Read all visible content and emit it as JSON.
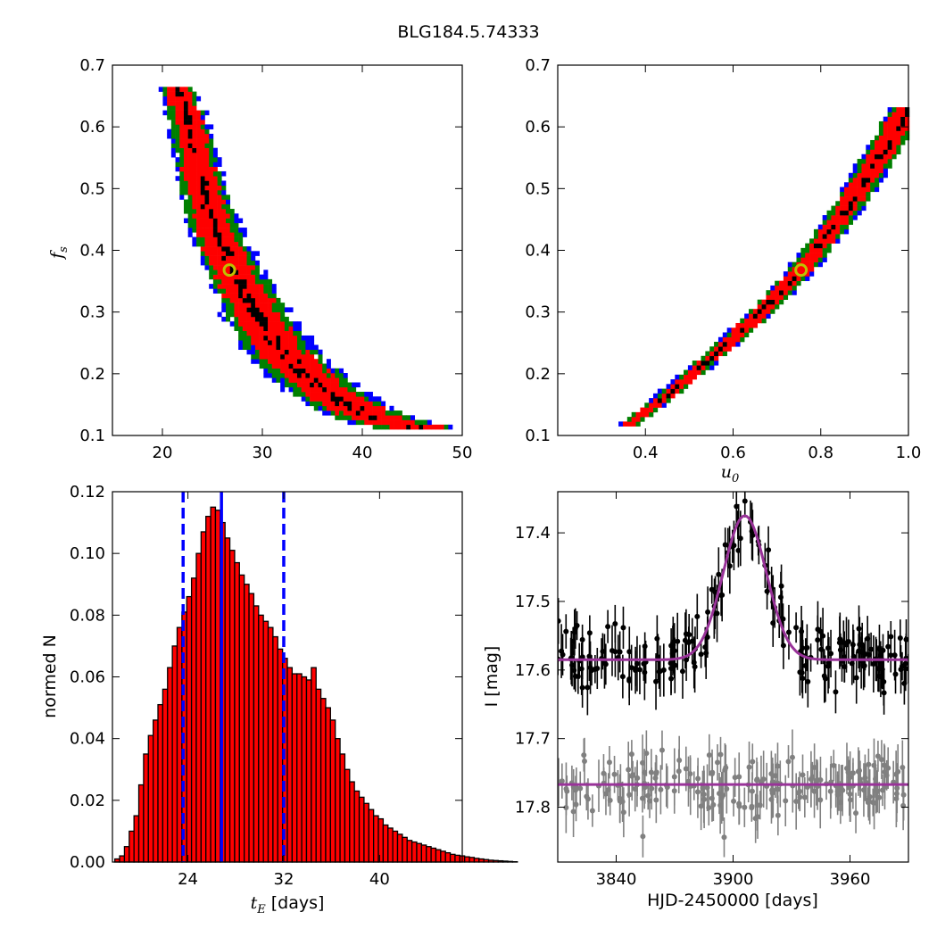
{
  "figure_title": "BLG184.5.74333",
  "colors": {
    "blue_level": "#0000ff",
    "green_level": "#008000",
    "red_level": "#ff0000",
    "black_level": "#000000",
    "best_fit_marker": "#bfbf00",
    "hist_bar": "#ff0000",
    "percentile_line": "#0000ff",
    "model_curve": "#993399",
    "data_points": "#000000",
    "residual_points": "#808080"
  },
  "chart_data": [
    {
      "id": "tE_fs",
      "type": "heatmap",
      "xlabel": "",
      "ylabel": "f_s",
      "ylabel_main": "f",
      "ylabel_sub": "s",
      "xlim": [
        15,
        50
      ],
      "ylim": [
        0.1,
        0.7
      ],
      "xticks": [
        20,
        30,
        40,
        50
      ],
      "yticks": [
        0.1,
        0.2,
        0.3,
        0.4,
        0.5,
        0.6,
        0.7
      ],
      "levels": [
        "blue",
        "green",
        "red",
        "black"
      ],
      "ridge": [
        [
          21.2,
          0.66
        ],
        [
          22.5,
          0.6
        ],
        [
          23.5,
          0.52
        ],
        [
          24.8,
          0.44
        ],
        [
          26.8,
          0.37
        ],
        [
          29,
          0.3
        ],
        [
          31,
          0.25
        ],
        [
          33,
          0.21
        ],
        [
          36,
          0.17
        ],
        [
          39,
          0.14
        ],
        [
          42,
          0.12
        ],
        [
          45,
          0.11
        ]
      ],
      "best_fit": {
        "x": 26.7,
        "y": 0.368
      }
    },
    {
      "id": "u0_fs",
      "type": "heatmap",
      "xlabel": "u_0",
      "xlabel_main": "u",
      "xlabel_sub": "0",
      "ylabel": "",
      "xlim": [
        0.2,
        1.0
      ],
      "ylim": [
        0.1,
        0.7
      ],
      "xticks": [
        0.4,
        0.6,
        0.8,
        1.0
      ],
      "yticks": [
        0.1,
        0.2,
        0.3,
        0.4,
        0.5,
        0.6,
        0.7
      ],
      "levels": [
        "blue",
        "green",
        "red",
        "black"
      ],
      "ridge": [
        [
          0.36,
          0.115
        ],
        [
          0.45,
          0.165
        ],
        [
          0.55,
          0.225
        ],
        [
          0.65,
          0.29
        ],
        [
          0.755,
          0.368
        ],
        [
          0.85,
          0.46
        ],
        [
          0.93,
          0.55
        ],
        [
          1.0,
          0.63
        ]
      ],
      "best_fit": {
        "x": 0.755,
        "y": 0.368
      }
    },
    {
      "id": "tE_hist",
      "type": "bar",
      "xlabel_main": "t",
      "xlabel_sub": "E",
      "xlabel_rest": " [days]",
      "ylabel": "normed N",
      "xlim": [
        17.7,
        46.9
      ],
      "ylim": [
        0,
        0.12
      ],
      "xticks": [
        24,
        32,
        40
      ],
      "yticks": [
        0.0,
        0.02,
        0.04,
        0.06,
        0.08,
        0.1,
        0.12
      ],
      "bin_start": 17.9,
      "bin_width": 0.4,
      "values": [
        0.001,
        0.002,
        0.005,
        0.01,
        0.015,
        0.025,
        0.035,
        0.041,
        0.046,
        0.051,
        0.056,
        0.063,
        0.07,
        0.076,
        0.081,
        0.086,
        0.092,
        0.1,
        0.107,
        0.112,
        0.115,
        0.114,
        0.11,
        0.105,
        0.101,
        0.097,
        0.093,
        0.09,
        0.087,
        0.083,
        0.08,
        0.078,
        0.076,
        0.073,
        0.069,
        0.066,
        0.063,
        0.061,
        0.061,
        0.06,
        0.059,
        0.063,
        0.056,
        0.053,
        0.05,
        0.046,
        0.04,
        0.035,
        0.03,
        0.026,
        0.023,
        0.021,
        0.019,
        0.017,
        0.015,
        0.014,
        0.012,
        0.011,
        0.01,
        0.009,
        0.008,
        0.007,
        0.0065,
        0.006,
        0.0055,
        0.005,
        0.0045,
        0.004,
        0.0035,
        0.003,
        0.0025,
        0.0022,
        0.002,
        0.0017,
        0.0015,
        0.0012,
        0.001,
        0.0008,
        0.0006,
        0.0005,
        0.0004,
        0.0003,
        0.0002,
        0.0001
      ],
      "median": 26.8,
      "percentiles": [
        23.6,
        32.0
      ]
    },
    {
      "id": "lightcurve",
      "type": "scatter",
      "xlabel": "HJD-2450000 [days]",
      "ylabel": "I [mag]",
      "xlim": [
        3810,
        3990
      ],
      "ylim": [
        17.88,
        17.34
      ],
      "xticks": [
        3840,
        3900,
        3960
      ],
      "yticks": [
        17.4,
        17.5,
        17.6,
        17.7,
        17.8
      ],
      "model": {
        "t0": 3906,
        "base_mag": 17.585,
        "peak_mag": 17.375,
        "width_days": 22
      },
      "residual_offset_mag": 17.767
    }
  ]
}
